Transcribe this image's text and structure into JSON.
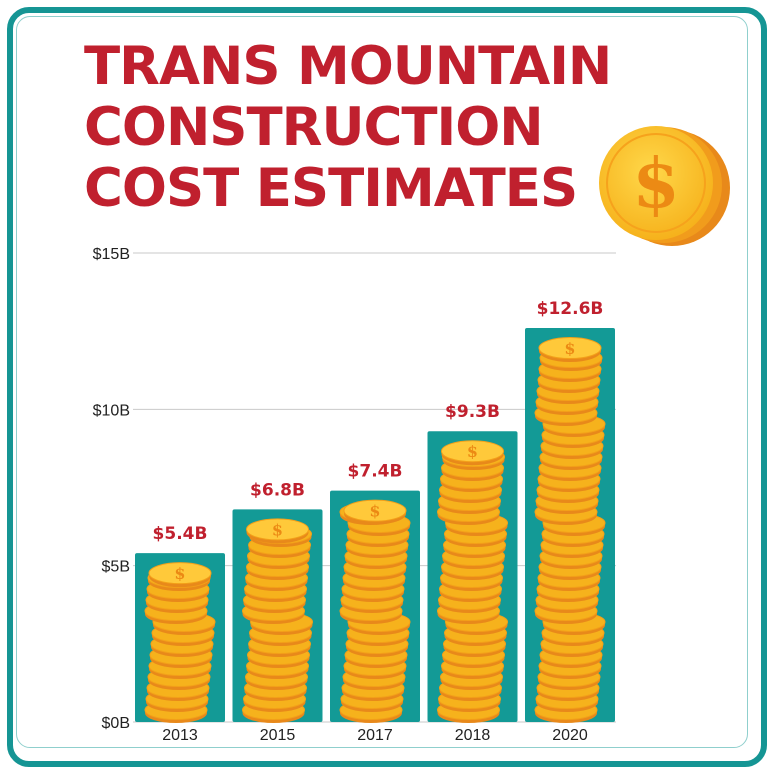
{
  "title_lines": [
    "TRANS MOUNTAIN",
    "CONSTRUCTION",
    "COST ESTIMATES"
  ],
  "colors": {
    "frame": "#159594",
    "bar": "#139a96",
    "title": "#c0202e",
    "value_label": "#c0202e",
    "coin": "#f6b21c",
    "coin_edge": "#e8891a"
  },
  "decor_icon": "gold-dollar-coin-icon",
  "chart_data": {
    "type": "bar",
    "title": "TRANS MOUNTAIN CONSTRUCTION COST ESTIMATES",
    "xlabel": "",
    "ylabel": "",
    "categories": [
      "2013",
      "2015",
      "2017",
      "2018",
      "2020"
    ],
    "values": [
      5.4,
      6.8,
      7.4,
      9.3,
      12.6
    ],
    "value_labels": [
      "$5.4B",
      "$6.8B",
      "$7.4B",
      "$9.3B",
      "$12.6B"
    ],
    "ylim": [
      0,
      15
    ],
    "yticks": [
      0,
      5,
      10,
      15
    ],
    "ytick_labels": [
      "$0B",
      "$5B",
      "$10B",
      "$15B"
    ],
    "grid": true,
    "legend": "none"
  }
}
